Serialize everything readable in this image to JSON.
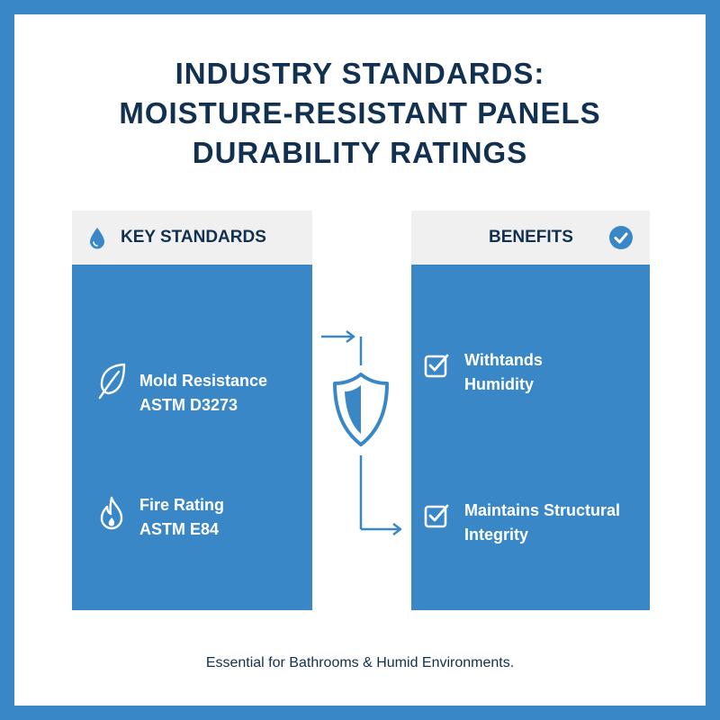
{
  "title": {
    "line1": "INDUSTRY STANDARDS:",
    "line2": "MOISTURE-RESISTANT PANELS",
    "line3": "DURABILITY RATINGS"
  },
  "left_panel": {
    "header": "KEY STANDARDS",
    "header_icon": "water-drop-icon",
    "items": [
      {
        "line1": "Mold Resistance",
        "line2": "ASTM D3273",
        "icon": "leaf-icon"
      },
      {
        "line1": "Fire Rating",
        "line2": "ASTM E84",
        "icon": "flame-icon"
      }
    ]
  },
  "right_panel": {
    "header": "BENEFITS",
    "header_icon": "check-circle-icon",
    "items": [
      {
        "line1": "Withtands",
        "line2": "Humidity",
        "icon": "checkbox-icon"
      },
      {
        "line1": "Maintains Structural",
        "line2": "Integrity",
        "icon": "checkbox-icon"
      }
    ]
  },
  "center_icon": "shield-icon",
  "footer": "Essential for Bathrooms & Humid Environments.",
  "colors": {
    "border": "#3a87c8",
    "panel": "#3a87c8",
    "header_bg": "#f0f0f0",
    "text_dark": "#12304f"
  }
}
